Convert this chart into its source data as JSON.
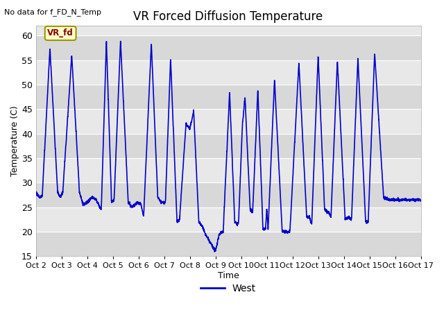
{
  "title": "VR Forced Diffusion Temperature",
  "xlabel": "Time",
  "ylabel": "Temperature (C)",
  "no_data_label": "No data for f_FD_N_Temp",
  "legend_label": "West",
  "line_color": "#0000cc",
  "background_color": "#ffffff",
  "plot_bg_color": "#e8e8e8",
  "band_light_color": "#d8d8d8",
  "ylim": [
    15,
    62
  ],
  "yticks": [
    15,
    20,
    25,
    30,
    35,
    40,
    45,
    50,
    55,
    60
  ],
  "x_labels": [
    "Oct 2",
    "Oct 3",
    "Oct 4",
    "Oct 5",
    "Oct 6",
    "Oct 7",
    "Oct 8",
    "Oct 9",
    "Oct 10",
    "Oct 11",
    "Oct 12",
    "Oct 13",
    "Oct 14",
    "Oct 15",
    "Oct 16",
    "Oct 17"
  ],
  "annotation_label": "VR_fd",
  "annotation_box_color": "#ffffcc",
  "annotation_text_color": "#880000",
  "annotation_border_color": "#999900",
  "figsize": [
    6.4,
    4.8
  ],
  "dpi": 100
}
